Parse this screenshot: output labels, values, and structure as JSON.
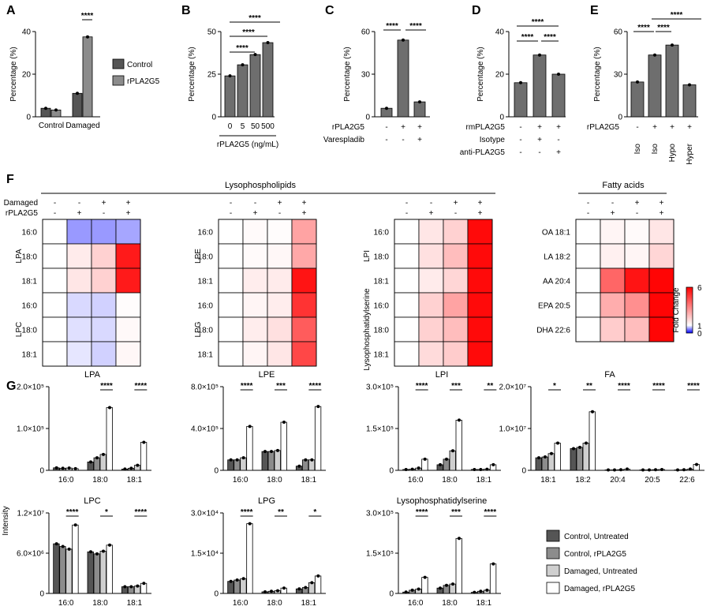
{
  "panel_letters": {
    "A": "A",
    "B": "B",
    "C": "C",
    "D": "D",
    "E": "E",
    "F": "F",
    "G": "G"
  },
  "colors": {
    "control_untreated": "#555555",
    "control_rpla2g5": "#8c8c8c",
    "damaged_untreated": "#cfcfcf",
    "damaged_rpla2g5": "#ffffff",
    "bar_single": "#6e6e6e",
    "heat_low": "#0000ff",
    "heat_mid": "#ffffff",
    "heat_high": "#ff0000"
  },
  "chart_data": [
    {
      "id": "A",
      "type": "bar",
      "ylabel": "Percentage (%)",
      "ylim": [
        0,
        40
      ],
      "yticks": [
        "0",
        "20",
        "40"
      ],
      "categories": [
        "Control",
        "Damaged"
      ],
      "series": [
        {
          "name": "Control",
          "values": [
            4,
            11
          ]
        },
        {
          "name": "rPLA2G5",
          "values": [
            3.2,
            37.5
          ]
        }
      ],
      "legend": [
        "Control",
        "rPLA2G5"
      ],
      "sig": [
        "****"
      ]
    },
    {
      "id": "B",
      "type": "bar",
      "ylabel": "Percentage (%)",
      "ylim": [
        0,
        50
      ],
      "yticks": [
        "0",
        "25",
        "50"
      ],
      "categories": [
        "0",
        "5",
        "50",
        "500"
      ],
      "values": [
        24,
        30.5,
        36.5,
        43.5
      ],
      "xlabel": "rPLA2G5 (ng/mL)",
      "sig": [
        "****",
        "****",
        "****"
      ]
    },
    {
      "id": "C",
      "type": "bar",
      "ylabel": "Percentage (%)",
      "ylim": [
        0,
        60
      ],
      "yticks": [
        "0",
        "30",
        "60"
      ],
      "values": [
        6,
        54,
        10.5
      ],
      "rows": [
        {
          "label": "rPLA2G5",
          "signs": [
            "-",
            "+",
            "+"
          ]
        },
        {
          "label": "Varespladib",
          "signs": [
            "-",
            "-",
            "+"
          ]
        }
      ],
      "sig": [
        "****",
        "****"
      ]
    },
    {
      "id": "D",
      "type": "bar",
      "ylabel": "Percentage (%)",
      "ylim": [
        0,
        40
      ],
      "yticks": [
        "0",
        "20",
        "40"
      ],
      "values": [
        16,
        29,
        20
      ],
      "rows": [
        {
          "label": "rmPLA2G5",
          "signs": [
            "-",
            "+",
            "+"
          ]
        },
        {
          "label": "Isotype",
          "signs": [
            "-",
            "+",
            "-"
          ]
        },
        {
          "label": "anti-PLA2G5",
          "signs": [
            "-",
            "-",
            "+"
          ]
        }
      ],
      "sig": [
        "****",
        "****",
        "****"
      ]
    },
    {
      "id": "E",
      "type": "bar",
      "ylabel": "Percentage (%)",
      "ylim": [
        0,
        60
      ],
      "yticks": [
        "0",
        "30",
        "60"
      ],
      "values": [
        24.5,
        43.5,
        50.5,
        22.5
      ],
      "rows": [
        {
          "label": "rPLA2G5",
          "signs": [
            "-",
            "+",
            "+",
            "+"
          ]
        }
      ],
      "conditions": [
        "Iso",
        "Iso",
        "Hypo",
        "Hyper"
      ],
      "sig": [
        "****",
        "****",
        "****"
      ]
    },
    {
      "id": "F",
      "type": "heatmap",
      "colorbar": {
        "label": "Fold Change",
        "ticks": [
          "6",
          "1",
          "0"
        ],
        "range": [
          0,
          6
        ]
      },
      "sections": {
        "lyso": "Lysophospholipids",
        "fa": "Fatty acids"
      },
      "col_rows": [
        {
          "label": "Damaged",
          "signs": [
            "-",
            "-",
            "+",
            "+"
          ]
        },
        {
          "label": "rPLA2G5",
          "signs": [
            "-",
            "+",
            "-",
            "+"
          ]
        }
      ],
      "blocks": [
        {
          "groups": [
            {
              "label": "LPA",
              "rows": [
                "16:0",
                "18:0",
                "18:1"
              ],
              "values": [
                [
                  1,
                  0.6,
                  0.6,
                  0.65
                ],
                [
                  1,
                  1.4,
                  1.9,
                  5.5
                ],
                [
                  1,
                  1.5,
                  1.9,
                  5.5
                ]
              ]
            },
            {
              "label": "LPC",
              "rows": [
                "16:0",
                "18:0",
                "18:1"
              ],
              "values": [
                [
                  1,
                  0.85,
                  0.82,
                  1.05
                ],
                [
                  1,
                  0.88,
                  0.85,
                  1.12
                ],
                [
                  1,
                  0.9,
                  0.82,
                  1.15
                ]
              ]
            }
          ]
        },
        {
          "groups": [
            {
              "label": "LPE",
              "rows": [
                "16:0",
                "18:0",
                "18:1"
              ],
              "values": [
                [
                  1,
                  1.1,
                  1.05,
                  2.8
                ],
                [
                  1,
                  1.1,
                  1.15,
                  2.7
                ],
                [
                  1,
                  1.35,
                  1.4,
                  5.6
                ]
              ]
            },
            {
              "label": "LPG",
              "rows": [
                "16:0",
                "18:0",
                "18:1"
              ],
              "values": [
                [
                  1,
                  1.2,
                  1.35,
                  5.0
                ],
                [
                  1,
                  1.35,
                  1.6,
                  4.2
                ],
                [
                  1,
                  1.2,
                  1.5,
                  4.6
                ]
              ]
            }
          ]
        },
        {
          "groups": [
            {
              "label": "LPI",
              "rows": [
                "16:0",
                "18:0",
                "18:1"
              ],
              "values": [
                [
                  1,
                  1.5,
                  1.9,
                  5.8
                ],
                [
                  1,
                  1.6,
                  2.3,
                  5.8
                ],
                [
                  1,
                  1.4,
                  1.8,
                  5.8
                ]
              ]
            },
            {
              "label": "Lysophosphatidylserine",
              "rows": [
                "16:0",
                "18:0",
                "18:1"
              ],
              "values": [
                [
                  1,
                  1.9,
                  2.8,
                  5.8
                ],
                [
                  1,
                  1.9,
                  2.3,
                  5.8
                ],
                [
                  1,
                  1.7,
                  2.0,
                  5.8
                ]
              ]
            }
          ]
        },
        {
          "groups": [
            {
              "label": "",
              "rows": [
                "OA 18:1",
                "LA 18:2",
                "AA 20:4",
                "EPA 20:5",
                "DHA 22:6"
              ],
              "values": [
                [
                  1,
                  1.2,
                  1.1,
                  1.5
                ],
                [
                  1,
                  1.3,
                  1.2,
                  1.8
                ],
                [
                  1,
                  4.0,
                  5.6,
                  5.9
                ],
                [
                  1,
                  2.6,
                  3.2,
                  5.9
                ],
                [
                  1,
                  2.0,
                  2.3,
                  5.9
                ]
              ]
            }
          ]
        }
      ]
    },
    {
      "id": "G-LPA",
      "type": "bar",
      "title": "LPA",
      "ylim": [
        0,
        200000
      ],
      "yticks": [
        "2.0×10⁵",
        "1.0×10⁵",
        "0"
      ],
      "categories": [
        "16:0",
        "18:0",
        "18:1"
      ],
      "series": [
        {
          "name": "Control, Untreated",
          "values": [
            6000,
            20000,
            3000
          ]
        },
        {
          "name": "Control, rPLA2G5",
          "values": [
            5000,
            30000,
            5000
          ]
        },
        {
          "name": "Damaged, Untreated",
          "values": [
            5500,
            38000,
            12000
          ]
        },
        {
          "name": "Damaged, rPLA2G5",
          "values": [
            4000,
            150000,
            67000
          ]
        }
      ],
      "sig": [
        "",
        "****",
        "****"
      ]
    },
    {
      "id": "G-LPE",
      "type": "bar",
      "title": "LPE",
      "ylim": [
        0,
        800000
      ],
      "yticks": [
        "8.0×10⁵",
        "4.0×10⁵",
        "0"
      ],
      "categories": [
        "16:0",
        "18:0",
        "18:1"
      ],
      "series": [
        {
          "name": "Control, Untreated",
          "values": [
            100000,
            180000,
            40000
          ]
        },
        {
          "name": "Control, rPLA2G5",
          "values": [
            100000,
            180000,
            100000
          ]
        },
        {
          "name": "Damaged, Untreated",
          "values": [
            120000,
            190000,
            100000
          ]
        },
        {
          "name": "Damaged, rPLA2G5",
          "values": [
            420000,
            460000,
            610000
          ]
        }
      ],
      "sig": [
        "****",
        "***",
        "****"
      ]
    },
    {
      "id": "G-LPI",
      "type": "bar",
      "title": "LPI",
      "ylim": [
        0,
        300000
      ],
      "yticks": [
        "3.0×10⁵",
        "1.5×10⁵",
        "0"
      ],
      "categories": [
        "16:0",
        "18:0",
        "18:1"
      ],
      "series": [
        {
          "name": "Control, Untreated",
          "values": [
            3000,
            20000,
            3000
          ]
        },
        {
          "name": "Control, rPLA2G5",
          "values": [
            4000,
            40000,
            3000
          ]
        },
        {
          "name": "Damaged, Untreated",
          "values": [
            8000,
            70000,
            4000
          ]
        },
        {
          "name": "Damaged, rPLA2G5",
          "values": [
            40000,
            180000,
            20000
          ]
        }
      ],
      "sig": [
        "****",
        "***",
        "**"
      ]
    },
    {
      "id": "G-FA",
      "type": "bar",
      "title": "FA",
      "ylim": [
        0,
        20000000
      ],
      "yticks": [
        "2.0×10⁷",
        "1.0×10⁷",
        "0"
      ],
      "categories": [
        "18:1",
        "18:2",
        "20:4",
        "20:5",
        "22:6"
      ],
      "series": [
        {
          "name": "Control, Untreated",
          "values": [
            3000000,
            5200000,
            100000,
            100000,
            100000
          ]
        },
        {
          "name": "Control, rPLA2G5",
          "values": [
            3200000,
            5500000,
            100000,
            100000,
            150000
          ]
        },
        {
          "name": "Damaged, Untreated",
          "values": [
            4000000,
            6500000,
            150000,
            150000,
            300000
          ]
        },
        {
          "name": "Damaged, rPLA2G5",
          "values": [
            6500000,
            14000000,
            300000,
            200000,
            1400000
          ]
        }
      ],
      "sig": [
        "*",
        "**",
        "****",
        "****",
        "****"
      ]
    },
    {
      "id": "G-LPC",
      "type": "bar",
      "title": "LPC",
      "ylim": [
        0,
        12000000
      ],
      "yticks": [
        "1.2×10⁷",
        "6.0×10⁶",
        "0"
      ],
      "categories": [
        "16:0",
        "18:0",
        "18:1"
      ],
      "series": [
        {
          "name": "Control, Untreated",
          "values": [
            7400000,
            6200000,
            1000000
          ]
        },
        {
          "name": "Control, rPLA2G5",
          "values": [
            7000000,
            5900000,
            1000000
          ]
        },
        {
          "name": "Damaged, Untreated",
          "values": [
            6600000,
            6300000,
            1100000
          ]
        },
        {
          "name": "Damaged, rPLA2G5",
          "values": [
            10200000,
            7200000,
            1500000
          ]
        }
      ],
      "sig": [
        "****",
        "*",
        "****"
      ]
    },
    {
      "id": "G-LPG",
      "type": "bar",
      "title": "LPG",
      "ylim": [
        0,
        30000
      ],
      "yticks": [
        "3.0×10⁴",
        "1.5×10⁴",
        "0"
      ],
      "categories": [
        "16:0",
        "18:0",
        "18:1"
      ],
      "series": [
        {
          "name": "Control, Untreated",
          "values": [
            4500,
            600,
            1700
          ]
        },
        {
          "name": "Control, rPLA2G5",
          "values": [
            5000,
            800,
            2200
          ]
        },
        {
          "name": "Damaged, Untreated",
          "values": [
            5500,
            1000,
            4000
          ]
        },
        {
          "name": "Damaged, rPLA2G5",
          "values": [
            26000,
            2000,
            6500
          ]
        }
      ],
      "sig": [
        "****",
        "**",
        "*"
      ]
    },
    {
      "id": "G-LPS",
      "type": "bar",
      "title": "Lysophosphatidylserine",
      "ylim": [
        0,
        300000
      ],
      "yticks": [
        "3.0×10⁵",
        "1.5×10⁵",
        "0"
      ],
      "categories": [
        "16:0",
        "18:0",
        "18:1"
      ],
      "series": [
        {
          "name": "Control, Untreated",
          "values": [
            5000,
            20000,
            4000
          ]
        },
        {
          "name": "Control, rPLA2G5",
          "values": [
            12000,
            30000,
            8000
          ]
        },
        {
          "name": "Damaged, Untreated",
          "values": [
            16000,
            35000,
            12000
          ]
        },
        {
          "name": "Damaged, rPLA2G5",
          "values": [
            60000,
            205000,
            110000
          ]
        }
      ],
      "sig": [
        "****",
        "***",
        "****"
      ]
    }
  ],
  "g_ylabel": "Intensity",
  "g_legend": [
    "Control, Untreated",
    "Control, rPLA2G5",
    "Damaged, Untreated",
    "Damaged, rPLA2G5"
  ]
}
